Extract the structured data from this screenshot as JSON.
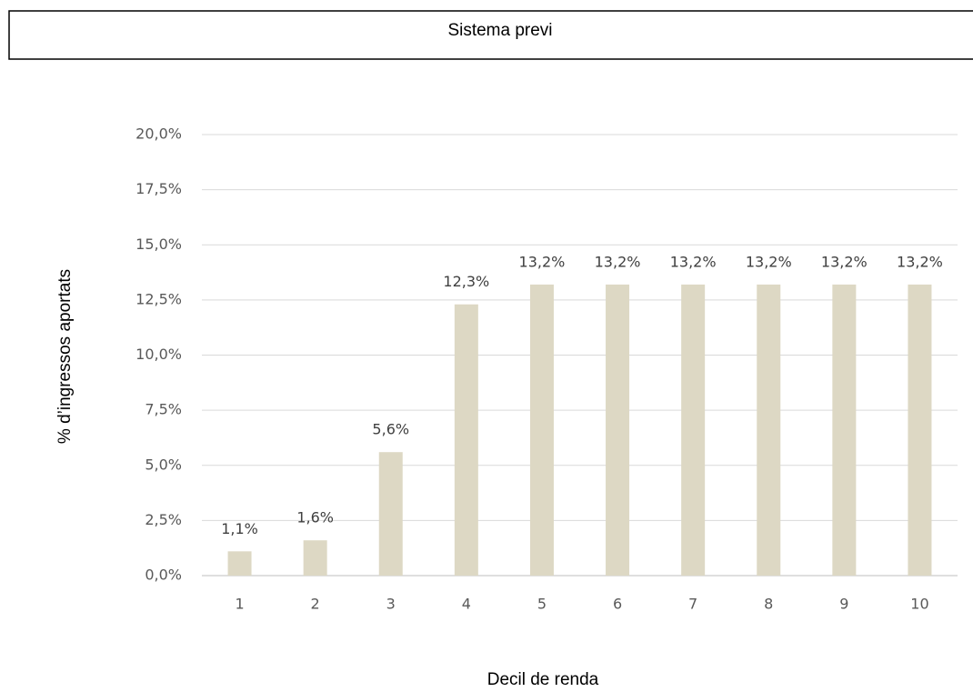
{
  "chart_data": {
    "type": "bar",
    "title": "Sistema previ",
    "x_label": "Decil de renda",
    "y_label": "% d’ingressos aportats",
    "categories": [
      "1",
      "2",
      "3",
      "4",
      "5",
      "6",
      "7",
      "8",
      "9",
      "10"
    ],
    "values": [
      1.1,
      1.6,
      5.6,
      12.3,
      13.2,
      13.2,
      13.2,
      13.2,
      13.2,
      13.2
    ],
    "value_labels": [
      "1,1%",
      "1,6%",
      "5,6%",
      "12,3%",
      "13,2%",
      "13,2%",
      "13,2%",
      "13,2%",
      "13,2%",
      "13,2%"
    ],
    "color": "#ddd8c4",
    "ylim": [
      0,
      20
    ],
    "yticks": [
      {
        "value": 0,
        "label": "0,0%"
      },
      {
        "value": 2.5,
        "label": "2,5%"
      },
      {
        "value": 5,
        "label": "5,0%"
      },
      {
        "value": 7.5,
        "label": "7,5%"
      },
      {
        "value": 10,
        "label": "10,0%"
      },
      {
        "value": 12.5,
        "label": "12,5%"
      },
      {
        "value": 15,
        "label": "15,0%"
      },
      {
        "value": 17.5,
        "label": "17,5%"
      },
      {
        "value": 20,
        "label": "20,0%"
      }
    ],
    "grid": true
  }
}
